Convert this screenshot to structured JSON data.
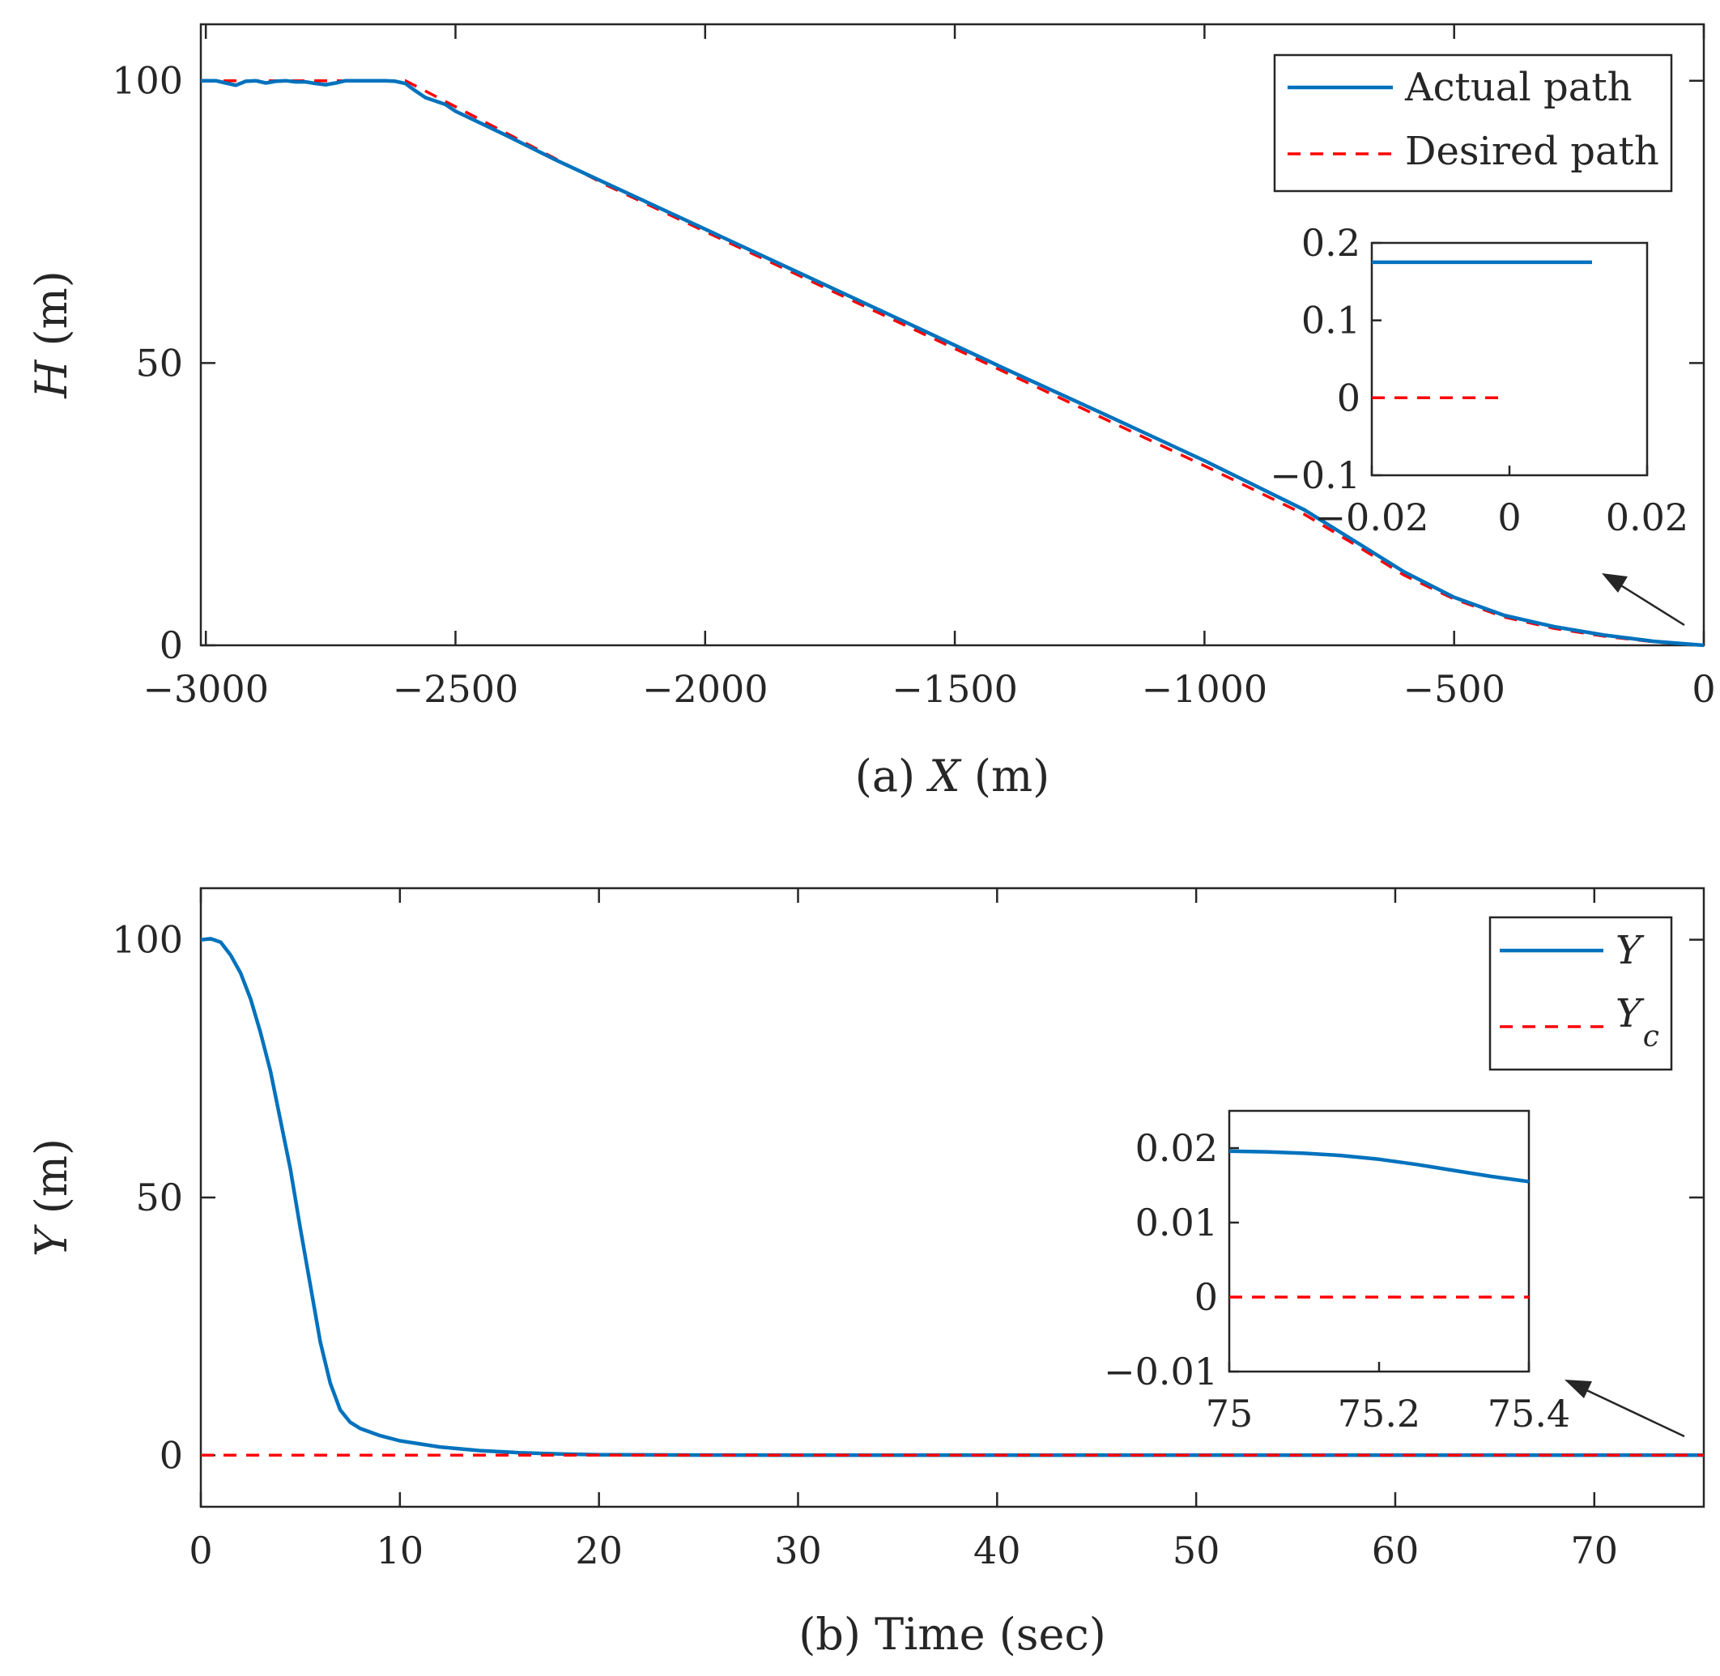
{
  "colors": {
    "actual": "#0072BD",
    "desired": "#FF0000",
    "axes": "#262626"
  },
  "chart_data": [
    {
      "id": "a",
      "type": "line",
      "xlabel": [
        "(a) ",
        "X",
        " (m)"
      ],
      "ylabel": [
        "H",
        " (m)"
      ],
      "xlim": [
        -3010,
        0
      ],
      "ylim": [
        0,
        110
      ],
      "xticks": [
        -3000,
        -2500,
        -2000,
        -1500,
        -1000,
        -500,
        0
      ],
      "xtick_labels": [
        "−3000",
        "−2500",
        "−2000",
        "−1500",
        "−1000",
        "−500",
        "0"
      ],
      "yticks": [
        0,
        50,
        100
      ],
      "ytick_labels": [
        "0",
        "50",
        "100"
      ],
      "legend": {
        "position": "top-right",
        "entries": [
          "Actual path",
          "Desired path"
        ]
      },
      "series": [
        {
          "name": "Actual path",
          "style": "solid",
          "x": [
            -3010,
            -2980,
            -2960,
            -2940,
            -2920,
            -2900,
            -2880,
            -2860,
            -2840,
            -2820,
            -2800,
            -2780,
            -2760,
            -2740,
            -2720,
            -2700,
            -2680,
            -2660,
            -2640,
            -2620,
            -2600,
            -2580,
            -2560,
            -2540,
            -2520,
            -2500,
            -2400,
            -2300,
            -2200,
            -2000,
            -1800,
            -1600,
            -1400,
            -1200,
            -1000,
            -800,
            -700,
            -600,
            -500,
            -400,
            -300,
            -200,
            -100,
            0
          ],
          "y": [
            100,
            100,
            99.6,
            99.2,
            99.9,
            100,
            99.6,
            99.9,
            100,
            99.8,
            99.8,
            99.5,
            99.3,
            99.6,
            100,
            100,
            100,
            100,
            100,
            99.9,
            99.5,
            98.2,
            97,
            96.4,
            95.8,
            94.6,
            90.4,
            86.0,
            81.9,
            73.7,
            65.5,
            57.3,
            49.0,
            40.9,
            32.7,
            24.0,
            18.5,
            13.0,
            8.5,
            5.3,
            3.3,
            1.8,
            0.7,
            0
          ]
        },
        {
          "name": "Desired path",
          "style": "dashed",
          "x": [
            -3010,
            -2600,
            -2200,
            -1800,
            -1400,
            -1000,
            -800,
            -700,
            -600,
            -500,
            -400,
            -300,
            -200,
            -100,
            0
          ],
          "y": [
            100,
            100,
            81.6,
            65.0,
            48.4,
            31.8,
            23.2,
            17.9,
            12.4,
            8.2,
            5.0,
            3.0,
            1.6,
            0.6,
            0
          ]
        }
      ],
      "inset": {
        "xlim": [
          -0.02,
          0.02
        ],
        "ylim": [
          -0.1,
          0.2
        ],
        "xticks": [
          -0.02,
          0,
          0.02
        ],
        "xtick_labels": [
          "−0.02",
          "0",
          "0.02"
        ],
        "yticks": [
          -0.1,
          0,
          0.1,
          0.2
        ],
        "ytick_labels": [
          "−0.1",
          "0",
          "0.1",
          "0.2"
        ],
        "series": [
          {
            "name": "Actual path",
            "style": "solid",
            "x": [
              -0.02,
              0.012
            ],
            "y": [
              0.175,
              0.175
            ]
          },
          {
            "name": "Desired path",
            "style": "dashed",
            "x": [
              -0.02,
              -0.0015
            ],
            "y": [
              0,
              0
            ]
          }
        ]
      }
    },
    {
      "id": "b",
      "type": "line",
      "xlabel": [
        "(b) Time (sec)"
      ],
      "ylabel": [
        "Y",
        " (m)"
      ],
      "xlim": [
        0,
        75.5
      ],
      "ylim": [
        -10,
        110
      ],
      "xticks": [
        0,
        10,
        20,
        30,
        40,
        50,
        60,
        70
      ],
      "xtick_labels": [
        "0",
        "10",
        "20",
        "30",
        "40",
        "50",
        "60",
        "70"
      ],
      "yticks": [
        0,
        50,
        100
      ],
      "ytick_labels": [
        "0",
        "50",
        "100"
      ],
      "legend": {
        "position": "top-right",
        "entries": [
          "Y",
          "Y",
          "c"
        ]
      },
      "series": [
        {
          "name": "Y",
          "style": "solid",
          "x": [
            0,
            0.5,
            1,
            1.5,
            2,
            2.5,
            3,
            3.5,
            4,
            4.5,
            5,
            5.5,
            6,
            6.5,
            7,
            7.5,
            8,
            9,
            10,
            12,
            14,
            16,
            18,
            20,
            25,
            30,
            40,
            50,
            60,
            70,
            75.5
          ],
          "y": [
            100,
            100.2,
            99.5,
            97,
            93.5,
            88.5,
            82,
            74.5,
            65,
            55.5,
            44,
            33,
            22,
            14,
            8.8,
            6.4,
            5.2,
            3.8,
            2.8,
            1.6,
            0.9,
            0.5,
            0.25,
            0.1,
            0.03,
            0.02,
            0.02,
            0.02,
            0.02,
            0.02,
            0.015
          ]
        },
        {
          "name": "Y_c",
          "style": "dashed",
          "x": [
            0,
            75.5
          ],
          "y": [
            0,
            0
          ]
        }
      ],
      "inset": {
        "xlim": [
          75,
          75.4
        ],
        "ylim": [
          -0.01,
          0.025
        ],
        "xticks": [
          75,
          75.2,
          75.4
        ],
        "xtick_labels": [
          "75",
          "75.2",
          "75.4"
        ],
        "yticks": [
          -0.01,
          0,
          0.01,
          0.02
        ],
        "ytick_labels": [
          "−0.01",
          "0",
          "0.01",
          "0.02"
        ],
        "series": [
          {
            "name": "Y",
            "style": "solid",
            "x": [
              75,
              75.05,
              75.1,
              75.15,
              75.2,
              75.25,
              75.3,
              75.35,
              75.4
            ],
            "y": [
              0.0196,
              0.0195,
              0.0193,
              0.019,
              0.0185,
              0.0178,
              0.017,
              0.0162,
              0.0155
            ]
          },
          {
            "name": "Y_c",
            "style": "dashed",
            "x": [
              75,
              75.4
            ],
            "y": [
              0,
              0
            ]
          }
        ]
      }
    }
  ]
}
